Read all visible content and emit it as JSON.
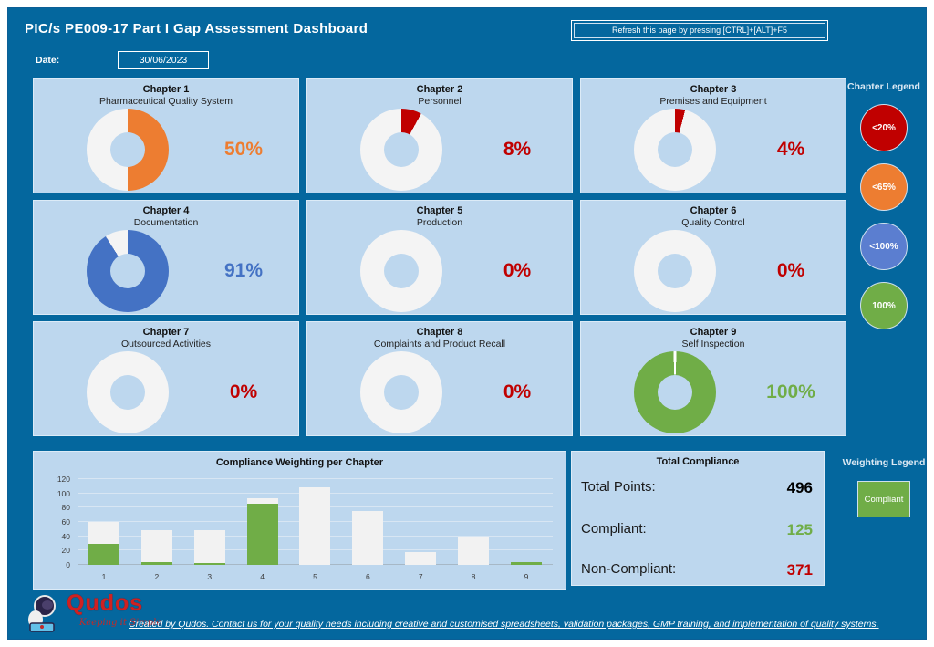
{
  "header": {
    "title": "PIC/s PE009-17 Part I Gap Assessment Dashboard",
    "refresh_label": "Refresh this page by pressing [CTRL]+[ALT]+F5",
    "date_label": "Date:",
    "date_value": "30/06/2023"
  },
  "chapters": [
    {
      "chapter": "Chapter 1",
      "name": "Pharmaceutical Quality System",
      "percent": 50,
      "percent_label": "50%",
      "color": "#ED7D31"
    },
    {
      "chapter": "Chapter 2",
      "name": "Personnel",
      "percent": 8,
      "percent_label": "8%",
      "color": "#C00000"
    },
    {
      "chapter": "Chapter 3",
      "name": "Premises and Equipment",
      "percent": 4,
      "percent_label": "4%",
      "color": "#C00000"
    },
    {
      "chapter": "Chapter 4",
      "name": "Documentation",
      "percent": 91,
      "percent_label": "91%",
      "color": "#4472C4"
    },
    {
      "chapter": "Chapter 5",
      "name": "Production",
      "percent": 0,
      "percent_label": "0%",
      "color": "#C00000"
    },
    {
      "chapter": "Chapter 6",
      "name": "Quality Control",
      "percent": 0,
      "percent_label": "0%",
      "color": "#C00000"
    },
    {
      "chapter": "Chapter 7",
      "name": "Outsourced Activities",
      "percent": 0,
      "percent_label": "0%",
      "color": "#C00000"
    },
    {
      "chapter": "Chapter 8",
      "name": "Complaints and Product Recall",
      "percent": 0,
      "percent_label": "0%",
      "color": "#C00000"
    },
    {
      "chapter": "Chapter 9",
      "name": "Self Inspection",
      "percent": 100,
      "percent_label": "100%",
      "color": "#70AD47"
    }
  ],
  "chapter_legend": {
    "title": "Chapter Legend",
    "items": [
      {
        "label": "<20%",
        "color": "#C00000"
      },
      {
        "label": "<65%",
        "color": "#ED7D31"
      },
      {
        "label": "<100%",
        "color": "#5B7ED0"
      },
      {
        "label": "100%",
        "color": "#70AD47"
      }
    ]
  },
  "chart_data": {
    "type": "bar",
    "stacked": true,
    "title": "Compliance Weighting per Chapter",
    "categories": [
      "1",
      "2",
      "3",
      "4",
      "5",
      "6",
      "7",
      "8",
      "9"
    ],
    "series": [
      {
        "name": "Compliant",
        "color": "#70AD47",
        "values": [
          30,
          4,
          2,
          85,
          0,
          0,
          0,
          0,
          4
        ]
      },
      {
        "name": "Non-Compliant",
        "color": "#F2F2F2",
        "values": [
          30,
          45,
          46,
          8,
          109,
          75,
          18,
          40,
          0
        ]
      }
    ],
    "totals": [
      60,
      49,
      48,
      93,
      109,
      75,
      18,
      40,
      4
    ],
    "xlabel": "",
    "ylabel": "",
    "ylim": [
      0,
      120
    ],
    "yticks": [
      0,
      20,
      40,
      60,
      80,
      100,
      120
    ],
    "grid": true,
    "legend_position": "none"
  },
  "total_compliance": {
    "title": "Total Compliance",
    "rows": [
      {
        "label": "Total Points:",
        "value": "496",
        "color": "#000000"
      },
      {
        "label": "Compliant:",
        "value": "125",
        "color": "#70AD47"
      },
      {
        "label": "Non-Compliant:",
        "value": "371",
        "color": "#C00000"
      }
    ]
  },
  "weighting_legend": {
    "title": "Weighting Legend",
    "items": [
      {
        "label": "Compliant",
        "color": "#70AD47"
      }
    ]
  },
  "footer": {
    "logo_text": "Qudos",
    "logo_tagline": "Keeping it Simple",
    "link_text": "Created by Qudos.  Contact us for your quality needs including creative and customised spreadsheets, validation packages, GMP training, and implementation of quality systems."
  },
  "colors": {
    "background": "#04679E",
    "card": "#BDD7EE",
    "red": "#C00000",
    "orange": "#ED7D31",
    "blue": "#4472C4",
    "green": "#70AD47",
    "donut_track": "#F4F4F4"
  }
}
